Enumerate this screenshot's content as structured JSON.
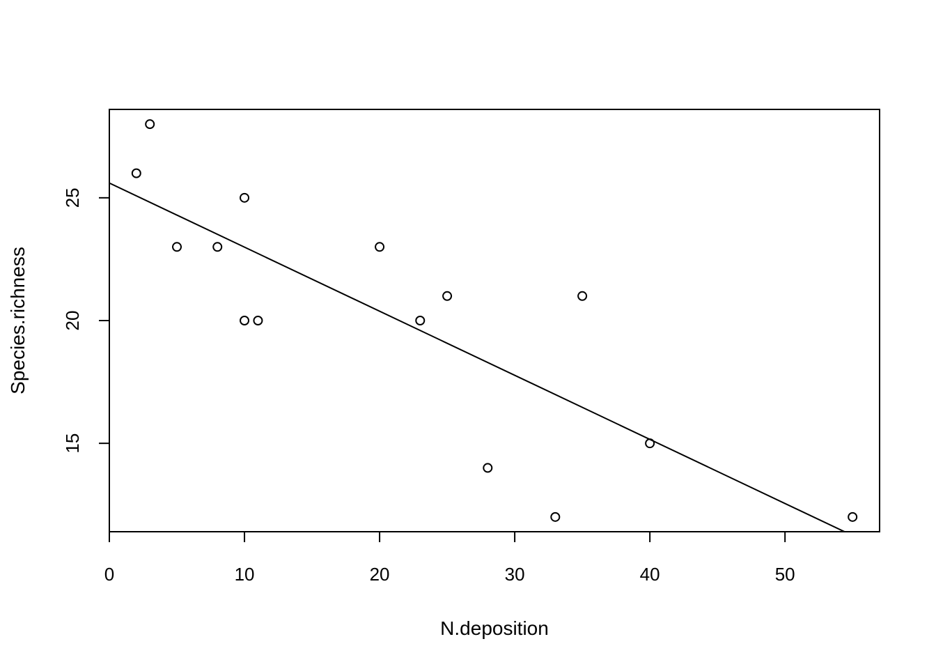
{
  "chart_data": {
    "type": "scatter",
    "title": "",
    "xlabel": "N.deposition",
    "ylabel": "Species.richness",
    "xlim": [
      0,
      57
    ],
    "ylim": [
      11.4,
      28.6
    ],
    "xticks": [
      0,
      10,
      20,
      30,
      40,
      50
    ],
    "yticks": [
      15,
      20,
      25
    ],
    "x": [
      2,
      3,
      5,
      8,
      10,
      10,
      11,
      20,
      23,
      25,
      28,
      33,
      35,
      40,
      55
    ],
    "y": [
      26,
      28,
      23,
      23,
      25,
      20,
      20,
      23,
      20,
      21,
      14,
      12,
      21,
      15,
      12
    ],
    "regression_line": {
      "intercept": 25.6,
      "slope": -0.261
    },
    "grid": false,
    "legend": "none",
    "colors": {
      "points": "#000000",
      "line": "#000000",
      "frame": "#000000"
    }
  }
}
